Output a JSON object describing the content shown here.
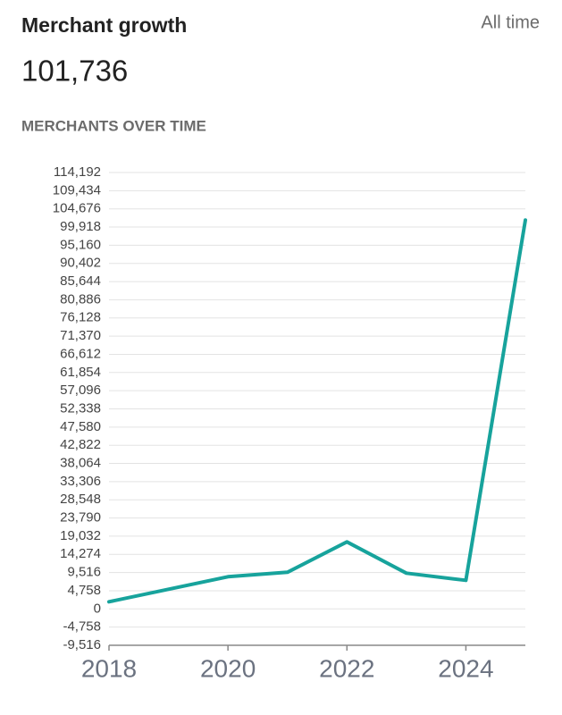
{
  "header": {
    "title": "Merchant growth",
    "range": "All time",
    "total": "101,736"
  },
  "chart_data": {
    "type": "line",
    "title": "MERCHANTS OVER TIME",
    "x": [
      2018,
      2019,
      2020,
      2021,
      2022,
      2023,
      2024,
      2025
    ],
    "values": [
      1870,
      5140,
      8420,
      9590,
      17540,
      9350,
      7480,
      101736
    ],
    "color": "#17a39c",
    "xlim": [
      2018,
      2025
    ],
    "xticks": [
      2018,
      2020,
      2022,
      2024
    ],
    "ylim": [
      -9516,
      114192
    ],
    "yticks": [
      {
        "value": -9516,
        "label": "-9,516"
      },
      {
        "value": -4758,
        "label": "-4,758"
      },
      0,
      {
        "value": 4758,
        "label": "4,758"
      },
      {
        "value": 9516,
        "label": "9,516"
      },
      {
        "value": 14274,
        "label": "14,274"
      },
      {
        "value": 19032,
        "label": "19,032"
      },
      {
        "value": 23790,
        "label": "23,790"
      },
      {
        "value": 28548,
        "label": "28,548"
      },
      {
        "value": 33306,
        "label": "33,306"
      },
      {
        "value": 38064,
        "label": "38,064"
      },
      {
        "value": 42822,
        "label": "42,822"
      },
      {
        "value": 47580,
        "label": "47,580"
      },
      {
        "value": 52338,
        "label": "52,338"
      },
      {
        "value": 57096,
        "label": "57,096"
      },
      {
        "value": 61854,
        "label": "61,854"
      },
      {
        "value": 66612,
        "label": "66,612"
      },
      {
        "value": 71370,
        "label": "71,370"
      },
      {
        "value": 76128,
        "label": "76,128"
      },
      {
        "value": 80886,
        "label": "80,886"
      },
      {
        "value": 85644,
        "label": "85,644"
      },
      {
        "value": 90402,
        "label": "90,402"
      },
      {
        "value": 95160,
        "label": "95,160"
      },
      {
        "value": 99918,
        "label": "99,918"
      },
      {
        "value": 104676,
        "label": "104,676"
      },
      {
        "value": 109434,
        "label": "109,434"
      },
      {
        "value": 114192,
        "label": "114,192"
      }
    ],
    "grid": true
  }
}
